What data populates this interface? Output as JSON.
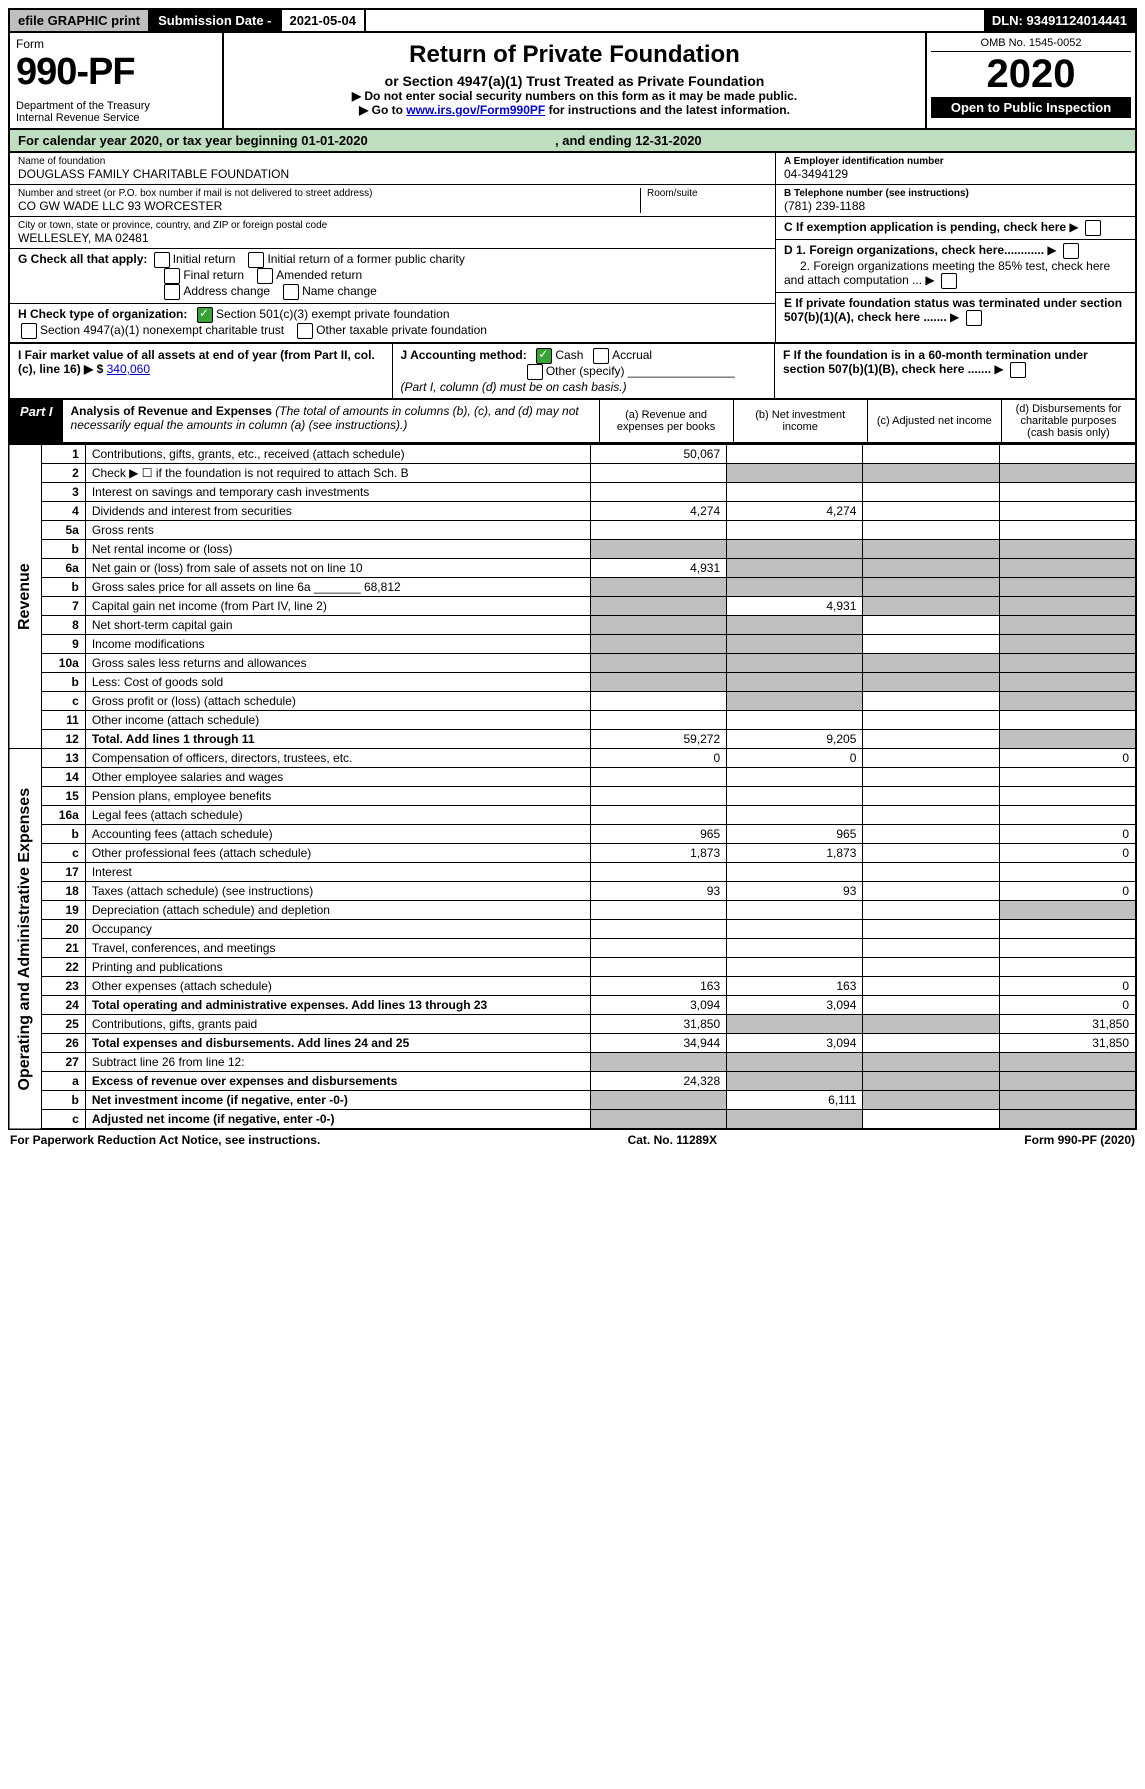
{
  "topbar": {
    "efile": "efile GRAPHIC print",
    "submission_label": "Submission Date - ",
    "submission_date": "2021-05-04",
    "dln_label": "DLN: ",
    "dln": "93491124014441"
  },
  "header": {
    "form_word": "Form",
    "form_number": "990-PF",
    "dept": "Department of the Treasury\nInternal Revenue Service",
    "title": "Return of Private Foundation",
    "subtitle": "or Section 4947(a)(1) Trust Treated as Private Foundation",
    "note1": "▶ Do not enter social security numbers on this form as it may be made public.",
    "note2_pre": "▶ Go to ",
    "note2_link": "www.irs.gov/Form990PF",
    "note2_post": " for instructions and the latest information.",
    "omb": "OMB No. 1545-0052",
    "year": "2020",
    "open": "Open to Public Inspection"
  },
  "cal_year": {
    "prefix": "For calendar year 2020, or tax year beginning ",
    "begin": "01-01-2020",
    "mid": " , and ending ",
    "end": "12-31-2020"
  },
  "info": {
    "name_label": "Name of foundation",
    "name": "DOUGLASS FAMILY CHARITABLE FOUNDATION",
    "addr_label": "Number and street (or P.O. box number if mail is not delivered to street address)",
    "addr": "CO GW WADE LLC 93 WORCESTER",
    "room_label": "Room/suite",
    "city_label": "City or town, state or province, country, and ZIP or foreign postal code",
    "city": "WELLESLEY, MA  02481",
    "ein_label": "A Employer identification number",
    "ein": "04-3494129",
    "phone_label": "B Telephone number (see instructions)",
    "phone": "(781) 239-1188",
    "c_label": "C If exemption application is pending, check here",
    "d1": "D 1. Foreign organizations, check here............",
    "d2": "2. Foreign organizations meeting the 85% test, check here and attach computation ...",
    "e": "E If private foundation status was terminated under section 507(b)(1)(A), check here .......",
    "f": "F If the foundation is in a 60-month termination under section 507(b)(1)(B), check here ......."
  },
  "checks": {
    "g_label": "G Check all that apply:",
    "g_items": [
      "Initial return",
      "Initial return of a former public charity",
      "Final return",
      "Amended return",
      "Address change",
      "Name change"
    ],
    "h_label": "H Check type of organization:",
    "h_501": "Section 501(c)(3) exempt private foundation",
    "h_4947": "Section 4947(a)(1) nonexempt charitable trust",
    "h_other": "Other taxable private foundation",
    "i_label": "I Fair market value of all assets at end of year (from Part II, col. (c), line 16) ▶ $",
    "i_value": "340,060",
    "j_label": "J Accounting method:",
    "j_cash": "Cash",
    "j_accrual": "Accrual",
    "j_other": "Other (specify)",
    "j_note": "(Part I, column (d) must be on cash basis.)"
  },
  "part1": {
    "label": "Part I",
    "title": "Analysis of Revenue and Expenses ",
    "title_note": "(The total of amounts in columns (b), (c), and (d) may not necessarily equal the amounts in column (a) (see instructions).)",
    "col_a": "(a) Revenue and expenses per books",
    "col_b": "(b) Net investment income",
    "col_c": "(c) Adjusted net income",
    "col_d": "(d) Disbursements for charitable purposes (cash basis only)"
  },
  "side": {
    "revenue": "Revenue",
    "expenses": "Operating and Administrative Expenses"
  },
  "lines": [
    {
      "n": "1",
      "d": "Contributions, gifts, grants, etc., received (attach schedule)",
      "a": "50,067",
      "b": "",
      "c": "",
      "dcol": ""
    },
    {
      "n": "2",
      "d": "Check ▶ ☐ if the foundation is not required to attach Sch. B",
      "a": "",
      "b": "",
      "c": "",
      "dcol": "",
      "shade_bcd": true
    },
    {
      "n": "3",
      "d": "Interest on savings and temporary cash investments",
      "a": "",
      "b": "",
      "c": "",
      "dcol": ""
    },
    {
      "n": "4",
      "d": "Dividends and interest from securities",
      "a": "4,274",
      "b": "4,274",
      "c": "",
      "dcol": ""
    },
    {
      "n": "5a",
      "d": "Gross rents",
      "a": "",
      "b": "",
      "c": "",
      "dcol": ""
    },
    {
      "n": "b",
      "d": "Net rental income or (loss)",
      "a": "",
      "b": "",
      "c": "",
      "dcol": "",
      "shade_all": true
    },
    {
      "n": "6a",
      "d": "Net gain or (loss) from sale of assets not on line 10",
      "a": "4,931",
      "b": "",
      "c": "",
      "dcol": "",
      "shade_bcd": true
    },
    {
      "n": "b",
      "d": "Gross sales price for all assets on line 6a _______ 68,812",
      "a": "",
      "b": "",
      "c": "",
      "dcol": "",
      "shade_all": true
    },
    {
      "n": "7",
      "d": "Capital gain net income (from Part IV, line 2)",
      "a": "",
      "b": "4,931",
      "c": "",
      "dcol": "",
      "shade_a": true,
      "shade_cd": true
    },
    {
      "n": "8",
      "d": "Net short-term capital gain",
      "a": "",
      "b": "",
      "c": "",
      "dcol": "",
      "shade_ab": true,
      "shade_d": true
    },
    {
      "n": "9",
      "d": "Income modifications",
      "a": "",
      "b": "",
      "c": "",
      "dcol": "",
      "shade_ab": true,
      "shade_d": true
    },
    {
      "n": "10a",
      "d": "Gross sales less returns and allowances",
      "a": "",
      "b": "",
      "c": "",
      "dcol": "",
      "shade_all": true
    },
    {
      "n": "b",
      "d": "Less: Cost of goods sold",
      "a": "",
      "b": "",
      "c": "",
      "dcol": "",
      "shade_all": true
    },
    {
      "n": "c",
      "d": "Gross profit or (loss) (attach schedule)",
      "a": "",
      "b": "",
      "c": "",
      "dcol": "",
      "shade_b": true,
      "shade_d": true
    },
    {
      "n": "11",
      "d": "Other income (attach schedule)",
      "a": "",
      "b": "",
      "c": "",
      "dcol": ""
    },
    {
      "n": "12",
      "d": "Total. Add lines 1 through 11",
      "a": "59,272",
      "b": "9,205",
      "c": "",
      "dcol": "",
      "bold": true,
      "shade_d": true
    }
  ],
  "exp_lines": [
    {
      "n": "13",
      "d": "Compensation of officers, directors, trustees, etc.",
      "a": "0",
      "b": "0",
      "c": "",
      "dcol": "0"
    },
    {
      "n": "14",
      "d": "Other employee salaries and wages",
      "a": "",
      "b": "",
      "c": "",
      "dcol": ""
    },
    {
      "n": "15",
      "d": "Pension plans, employee benefits",
      "a": "",
      "b": "",
      "c": "",
      "dcol": ""
    },
    {
      "n": "16a",
      "d": "Legal fees (attach schedule)",
      "a": "",
      "b": "",
      "c": "",
      "dcol": ""
    },
    {
      "n": "b",
      "d": "Accounting fees (attach schedule)",
      "a": "965",
      "b": "965",
      "c": "",
      "dcol": "0"
    },
    {
      "n": "c",
      "d": "Other professional fees (attach schedule)",
      "a": "1,873",
      "b": "1,873",
      "c": "",
      "dcol": "0"
    },
    {
      "n": "17",
      "d": "Interest",
      "a": "",
      "b": "",
      "c": "",
      "dcol": ""
    },
    {
      "n": "18",
      "d": "Taxes (attach schedule) (see instructions)",
      "a": "93",
      "b": "93",
      "c": "",
      "dcol": "0"
    },
    {
      "n": "19",
      "d": "Depreciation (attach schedule) and depletion",
      "a": "",
      "b": "",
      "c": "",
      "dcol": "",
      "shade_d": true
    },
    {
      "n": "20",
      "d": "Occupancy",
      "a": "",
      "b": "",
      "c": "",
      "dcol": ""
    },
    {
      "n": "21",
      "d": "Travel, conferences, and meetings",
      "a": "",
      "b": "",
      "c": "",
      "dcol": ""
    },
    {
      "n": "22",
      "d": "Printing and publications",
      "a": "",
      "b": "",
      "c": "",
      "dcol": ""
    },
    {
      "n": "23",
      "d": "Other expenses (attach schedule)",
      "a": "163",
      "b": "163",
      "c": "",
      "dcol": "0"
    },
    {
      "n": "24",
      "d": "Total operating and administrative expenses. Add lines 13 through 23",
      "a": "3,094",
      "b": "3,094",
      "c": "",
      "dcol": "0",
      "bold": true
    },
    {
      "n": "25",
      "d": "Contributions, gifts, grants paid",
      "a": "31,850",
      "b": "",
      "c": "",
      "dcol": "31,850",
      "shade_bc": true
    },
    {
      "n": "26",
      "d": "Total expenses and disbursements. Add lines 24 and 25",
      "a": "34,944",
      "b": "3,094",
      "c": "",
      "dcol": "31,850",
      "bold": true
    },
    {
      "n": "27",
      "d": "Subtract line 26 from line 12:",
      "a": "",
      "b": "",
      "c": "",
      "dcol": "",
      "shade_all": true
    },
    {
      "n": "a",
      "d": "Excess of revenue over expenses and disbursements",
      "a": "24,328",
      "b": "",
      "c": "",
      "dcol": "",
      "bold": true,
      "shade_bcd": true
    },
    {
      "n": "b",
      "d": "Net investment income (if negative, enter -0-)",
      "a": "",
      "b": "6,111",
      "c": "",
      "dcol": "",
      "bold": true,
      "shade_a": true,
      "shade_cd": true
    },
    {
      "n": "c",
      "d": "Adjusted net income (if negative, enter -0-)",
      "a": "",
      "b": "",
      "c": "",
      "dcol": "",
      "bold": true,
      "shade_ab": true,
      "shade_d": true
    }
  ],
  "footer": {
    "left": "For Paperwork Reduction Act Notice, see instructions.",
    "mid": "Cat. No. 11289X",
    "right": "Form 990-PF (2020)"
  },
  "colors": {
    "shade": "#bfbfbf",
    "green_bar": "#bfddbf",
    "checked": "#37a337",
    "link": "#0000cc"
  }
}
